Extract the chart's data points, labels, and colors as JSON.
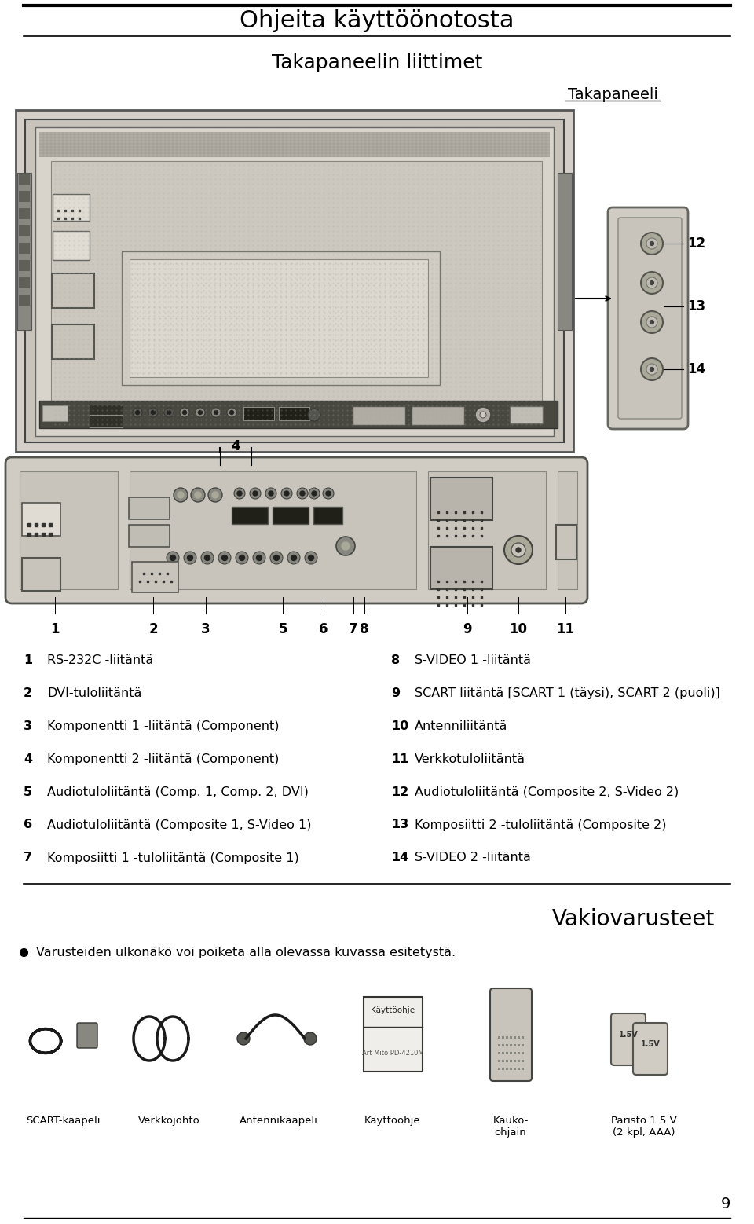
{
  "title": "Ohjeita käyttöönotosta",
  "subtitle": "Takapaneelin liittimet",
  "panel_label": "Takapaneeli",
  "bg_color": "#ffffff",
  "text_color": "#000000",
  "items_left": [
    [
      "1",
      "RS-232C -liitäntä"
    ],
    [
      "2",
      "DVI-tuloliitäntä"
    ],
    [
      "3",
      "Komponentti 1 -liitäntä (Component)"
    ],
    [
      "4",
      "Komponentti 2 -liitäntä (Component)"
    ],
    [
      "5",
      "Audiotuloliitäntä (Comp. 1, Comp. 2, DVI)"
    ],
    [
      "6",
      "Audiotuloliitäntä (Composite 1, S-Video 1)"
    ],
    [
      "7",
      "Komposiitti 1 -tuloliitäntä (Composite 1)"
    ]
  ],
  "items_right": [
    [
      "8",
      "S-VIDEO 1 -liitäntä"
    ],
    [
      "9",
      "SCART liitäntä [SCART 1 (täysi), SCART 2 (puoli)]"
    ],
    [
      "10",
      "Antenniliitäntä"
    ],
    [
      "11",
      "Verkkotuloliitäntä"
    ],
    [
      "12",
      "Audiotuloliitäntä (Composite 2, S-Video 2)"
    ],
    [
      "13",
      "Komposiitti 2 -tuloliitäntä (Composite 2)"
    ],
    [
      "14",
      "S-VIDEO 2 -liitäntä"
    ]
  ],
  "vakio_title": "Vakiovarusteet",
  "vakio_bullet": "Varusteiden ulkonäkö voi poiketa alla olevassa kuvassa esitetystä.",
  "acc_labels": [
    "SCART-kaapeli",
    "Verkkojohto",
    "Antennikaapeli",
    "Käyttöohje",
    "Kauko-\nohjain",
    "Paristo 1.5 V\n(2 kpl, AAA)"
  ],
  "page_number": "9",
  "title_fontsize": 22,
  "subtitle_fontsize": 18,
  "panel_label_fontsize": 14,
  "body_fontsize": 11.5,
  "num_fontsize": 12
}
